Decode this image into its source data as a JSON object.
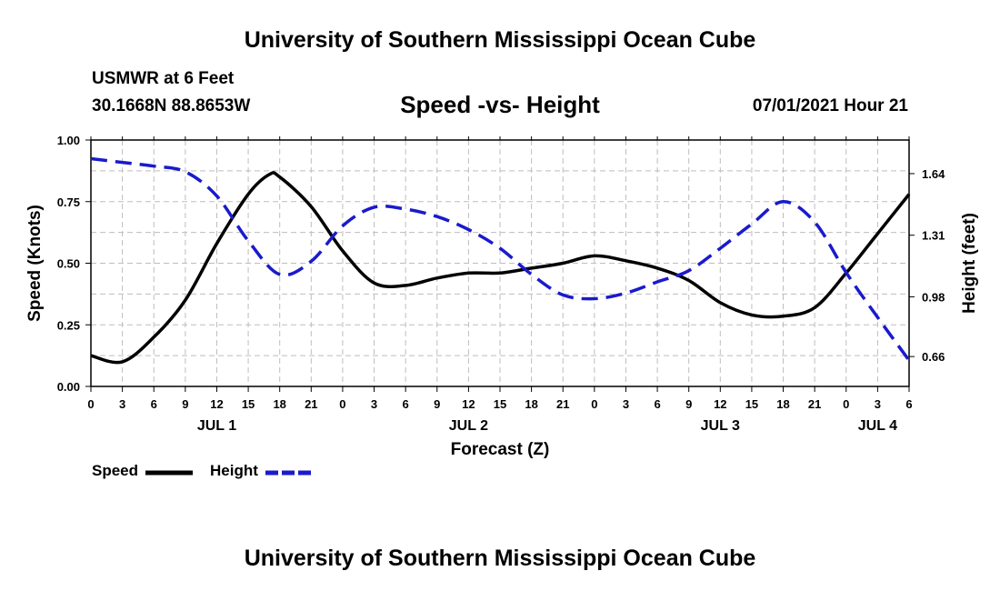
{
  "header": {
    "title": "University of Southern Mississippi Ocean Cube",
    "station": "USMWR at 6 Feet",
    "coords": "30.1668N  88.8653W",
    "subtitle": "Speed -vs- Height",
    "datetime": "07/01/2021 Hour 21"
  },
  "footer": {
    "title": "University of Southern Mississippi Ocean Cube"
  },
  "legend": {
    "speed": "Speed",
    "height": "Height"
  },
  "colors": {
    "speed": "#000000",
    "height": "#1a1acc",
    "grid": "#bdbdbd"
  },
  "chart_data": {
    "type": "line",
    "title": "Speed -vs- Height",
    "xlabel": "Forecast (Z)",
    "ylabel": "Speed (Knots)",
    "y2label": "Height (feet)",
    "x_range_hours": [
      0,
      78
    ],
    "x_ticks": [
      {
        "h": 0,
        "label": "0"
      },
      {
        "h": 3,
        "label": "3"
      },
      {
        "h": 6,
        "label": "6"
      },
      {
        "h": 9,
        "label": "9"
      },
      {
        "h": 12,
        "label": "12"
      },
      {
        "h": 15,
        "label": "15"
      },
      {
        "h": 18,
        "label": "18"
      },
      {
        "h": 21,
        "label": "21"
      },
      {
        "h": 24,
        "label": "0"
      },
      {
        "h": 27,
        "label": "3"
      },
      {
        "h": 30,
        "label": "6"
      },
      {
        "h": 33,
        "label": "9"
      },
      {
        "h": 36,
        "label": "12"
      },
      {
        "h": 39,
        "label": "15"
      },
      {
        "h": 42,
        "label": "18"
      },
      {
        "h": 45,
        "label": "21"
      },
      {
        "h": 48,
        "label": "0"
      },
      {
        "h": 51,
        "label": "3"
      },
      {
        "h": 54,
        "label": "6"
      },
      {
        "h": 57,
        "label": "9"
      },
      {
        "h": 60,
        "label": "12"
      },
      {
        "h": 63,
        "label": "15"
      },
      {
        "h": 66,
        "label": "18"
      },
      {
        "h": 69,
        "label": "21"
      },
      {
        "h": 72,
        "label": "0"
      },
      {
        "h": 75,
        "label": "3"
      },
      {
        "h": 78,
        "label": "6"
      }
    ],
    "day_labels": [
      {
        "h": 12,
        "label": "JUL 1"
      },
      {
        "h": 36,
        "label": "JUL 2"
      },
      {
        "h": 60,
        "label": "JUL 3"
      },
      {
        "h": 75,
        "label": "JUL 4"
      }
    ],
    "y_left": {
      "range": [
        0,
        1
      ],
      "ticks": [
        0,
        0.25,
        0.5,
        0.75,
        1.0
      ],
      "tick_labels": [
        "0.00",
        "0.25",
        "0.50",
        "0.75",
        "1.00"
      ]
    },
    "y_right": {
      "range": [
        0.5,
        1.82
      ],
      "ticks": [
        0.66,
        0.98,
        1.31,
        1.64
      ],
      "tick_labels": [
        "0.66",
        "0.98",
        "1.31",
        "1.64"
      ]
    },
    "series": [
      {
        "name": "Speed",
        "axis": "left",
        "style": "solid",
        "x": [
          0,
          3,
          6,
          9,
          12,
          15,
          17,
          18,
          21,
          24,
          27,
          30,
          33,
          36,
          39,
          42,
          45,
          48,
          51,
          54,
          57,
          60,
          63,
          66,
          69,
          72,
          75,
          78
        ],
        "values": [
          0.125,
          0.1,
          0.2,
          0.35,
          0.58,
          0.78,
          0.86,
          0.85,
          0.73,
          0.55,
          0.42,
          0.41,
          0.44,
          0.46,
          0.46,
          0.48,
          0.5,
          0.53,
          0.51,
          0.48,
          0.43,
          0.34,
          0.29,
          0.285,
          0.32,
          0.46,
          0.62,
          0.78
        ]
      },
      {
        "name": "Height",
        "axis": "right",
        "style": "dashed",
        "x": [
          0,
          3,
          6,
          9,
          12,
          15,
          18,
          21,
          24,
          27,
          30,
          33,
          36,
          39,
          42,
          45,
          48,
          51,
          54,
          57,
          60,
          63,
          66,
          69,
          72,
          75,
          78
        ],
        "values": [
          1.72,
          1.7,
          1.68,
          1.65,
          1.52,
          1.28,
          1.1,
          1.17,
          1.36,
          1.46,
          1.45,
          1.41,
          1.34,
          1.24,
          1.1,
          0.99,
          0.97,
          1.0,
          1.06,
          1.12,
          1.24,
          1.37,
          1.49,
          1.38,
          1.11,
          0.87,
          0.64
        ]
      }
    ]
  }
}
